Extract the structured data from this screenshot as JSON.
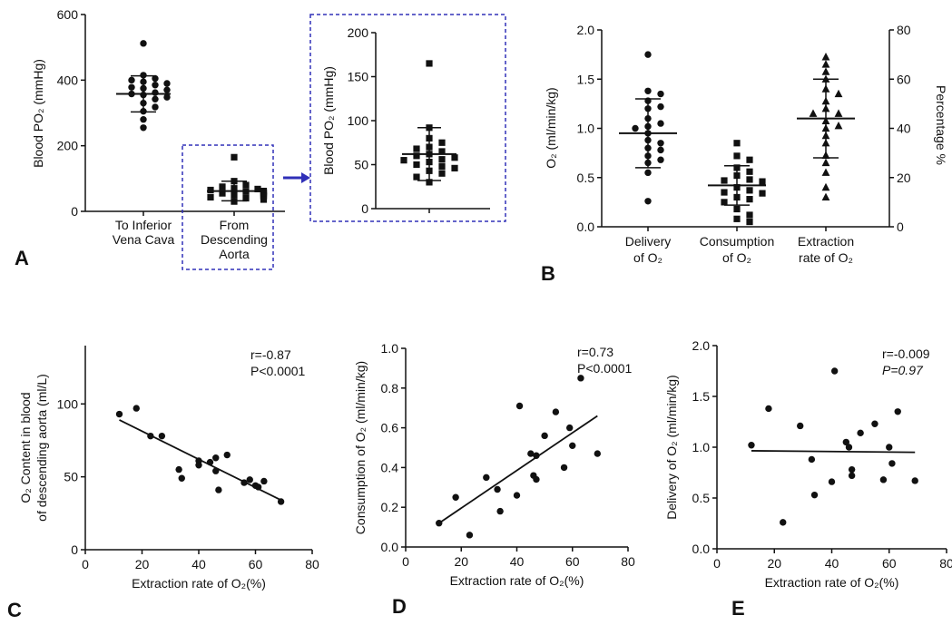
{
  "panel_labels": {
    "a": "A",
    "b": "B",
    "c": "C",
    "d": "D",
    "e": "E"
  },
  "colors": {
    "ink": "#111111",
    "highlight": "#3030b8"
  },
  "chart_data": [
    {
      "id": "A",
      "type": "scatter",
      "ylabel": "Blood PO₂ (mmHg)",
      "ylim": [
        0,
        600
      ],
      "yticks": [
        0,
        200,
        400,
        600
      ],
      "categories": [
        [
          "To Inferior",
          "Vena Cava"
        ],
        [
          "From",
          "Descending",
          "Aorta"
        ]
      ],
      "groups": [
        {
          "marker": "circle",
          "mean": 358,
          "sd": 55,
          "values": [
            512,
            415,
            405,
            400,
            395,
            390,
            385,
            378,
            375,
            370,
            362,
            358,
            355,
            348,
            342,
            330,
            318,
            305,
            280,
            255
          ]
        },
        {
          "marker": "square",
          "mean": 62,
          "sd": 30,
          "values": [
            165,
            92,
            80,
            75,
            70,
            68,
            65,
            62,
            60,
            58,
            56,
            55,
            53,
            50,
            48,
            46,
            43,
            40,
            36,
            30
          ]
        }
      ]
    },
    {
      "id": "A-inset",
      "type": "scatter",
      "ylabel": "Blood PO₂ (mmHg)",
      "ylim": [
        0,
        200
      ],
      "yticks": [
        0,
        50,
        100,
        150,
        200
      ],
      "groups": [
        {
          "marker": "square",
          "mean": 62,
          "sd": 30,
          "values": [
            165,
            92,
            80,
            75,
            70,
            68,
            65,
            62,
            60,
            58,
            56,
            55,
            53,
            50,
            48,
            46,
            43,
            40,
            36,
            30
          ]
        }
      ]
    },
    {
      "id": "B",
      "type": "scatter",
      "ylabel": "O₂ (ml/min/kg)",
      "ylabel_right": "Percentage %",
      "ylim": [
        0,
        2
      ],
      "yticks": [
        "0.0",
        "0.5",
        "1.0",
        "1.5",
        "2.0"
      ],
      "ylim_right": [
        0,
        80
      ],
      "yticks_right": [
        0,
        20,
        40,
        60,
        80
      ],
      "categories": [
        [
          "Delivery",
          "of O₂"
        ],
        [
          "Consumption",
          "of O₂"
        ],
        [
          "Extraction",
          "rate of O₂"
        ]
      ],
      "groups": [
        {
          "marker": "circle",
          "axis": "left",
          "mean": 0.95,
          "sd": 0.35,
          "values": [
            1.75,
            1.38,
            1.35,
            1.28,
            1.22,
            1.2,
            1.1,
            1.05,
            1.02,
            1.0,
            0.95,
            0.88,
            0.85,
            0.8,
            0.78,
            0.72,
            0.68,
            0.65,
            0.55,
            0.26
          ]
        },
        {
          "marker": "square",
          "axis": "left",
          "mean": 0.42,
          "sd": 0.2,
          "values": [
            0.85,
            0.72,
            0.68,
            0.6,
            0.56,
            0.52,
            0.48,
            0.47,
            0.46,
            0.4,
            0.37,
            0.35,
            0.34,
            0.3,
            0.28,
            0.25,
            0.18,
            0.12,
            0.08,
            0.05
          ]
        },
        {
          "marker": "triangle",
          "axis": "right",
          "mean": 44,
          "sd": 16,
          "values": [
            69,
            66,
            63,
            60,
            56,
            54,
            51,
            48,
            46,
            46,
            43,
            41,
            40,
            37,
            34,
            29,
            26,
            22,
            16,
            12
          ]
        }
      ]
    },
    {
      "id": "C",
      "type": "scatter",
      "xlabel": "Extraction rate of O₂(%)",
      "ylabel": [
        "O₂ Content in blood",
        "of descending aorta (ml/L)"
      ],
      "xlim": [
        0,
        80
      ],
      "xticks": [
        0,
        20,
        40,
        60,
        80
      ],
      "ylim": [
        0,
        140
      ],
      "yticks": [
        0,
        50,
        100
      ],
      "stat_r": "r=-0.87",
      "stat_p": "P<0.0001",
      "fit": {
        "x": [
          12,
          69
        ],
        "y": [
          89,
          34
        ]
      },
      "points": [
        [
          12,
          93
        ],
        [
          18,
          97
        ],
        [
          23,
          78
        ],
        [
          27,
          78
        ],
        [
          33,
          55
        ],
        [
          34,
          49
        ],
        [
          40,
          61
        ],
        [
          40,
          58
        ],
        [
          44,
          60
        ],
        [
          46,
          63
        ],
        [
          46,
          54
        ],
        [
          47,
          41
        ],
        [
          50,
          65
        ],
        [
          56,
          46
        ],
        [
          58,
          48
        ],
        [
          60,
          44
        ],
        [
          61,
          43
        ],
        [
          63,
          47
        ],
        [
          69,
          33
        ]
      ]
    },
    {
      "id": "D",
      "type": "scatter",
      "xlabel": "Extraction rate of O₂(%)",
      "ylabel": "Consumption of O₂ (ml/min/kg)",
      "xlim": [
        0,
        80
      ],
      "xticks": [
        0,
        20,
        40,
        60,
        80
      ],
      "ylim": [
        0,
        1.0
      ],
      "yticks": [
        "0.0",
        "0.2",
        "0.4",
        "0.6",
        "0.8",
        "1.0"
      ],
      "stat_r": "r=0.73",
      "stat_p": "P<0.0001",
      "fit": {
        "x": [
          12,
          69
        ],
        "y": [
          0.12,
          0.66
        ]
      },
      "points": [
        [
          12,
          0.12
        ],
        [
          18,
          0.25
        ],
        [
          23,
          0.06
        ],
        [
          29,
          0.35
        ],
        [
          33,
          0.29
        ],
        [
          34,
          0.18
        ],
        [
          40,
          0.26
        ],
        [
          41,
          0.71
        ],
        [
          45,
          0.47
        ],
        [
          46,
          0.36
        ],
        [
          47,
          0.34
        ],
        [
          47,
          0.46
        ],
        [
          50,
          0.56
        ],
        [
          54,
          0.68
        ],
        [
          57,
          0.4
        ],
        [
          59,
          0.6
        ],
        [
          60,
          0.51
        ],
        [
          63,
          0.85
        ],
        [
          69,
          0.47
        ]
      ]
    },
    {
      "id": "E",
      "type": "scatter",
      "xlabel": "Extraction rate of O₂(%)",
      "ylabel": "Delivery of O₂ (ml/min/kg)",
      "xlim": [
        0,
        80
      ],
      "xticks": [
        0,
        20,
        40,
        60,
        80
      ],
      "ylim": [
        0,
        2.0
      ],
      "yticks": [
        "0.0",
        "0.5",
        "1.0",
        "1.5",
        "2.0"
      ],
      "stat_r": "r=-0.009",
      "stat_p": "P=0.97",
      "fit": {
        "x": [
          12,
          69
        ],
        "y": [
          0.965,
          0.95
        ]
      },
      "points": [
        [
          12,
          1.02
        ],
        [
          18,
          1.38
        ],
        [
          23,
          0.26
        ],
        [
          29,
          1.21
        ],
        [
          33,
          0.88
        ],
        [
          34,
          0.53
        ],
        [
          40,
          0.66
        ],
        [
          41,
          1.75
        ],
        [
          45,
          1.05
        ],
        [
          46,
          1.0
        ],
        [
          47,
          0.78
        ],
        [
          47,
          0.72
        ],
        [
          50,
          1.14
        ],
        [
          55,
          1.23
        ],
        [
          58,
          0.68
        ],
        [
          60,
          1.0
        ],
        [
          61,
          0.84
        ],
        [
          63,
          1.35
        ],
        [
          69,
          0.67
        ]
      ]
    }
  ]
}
